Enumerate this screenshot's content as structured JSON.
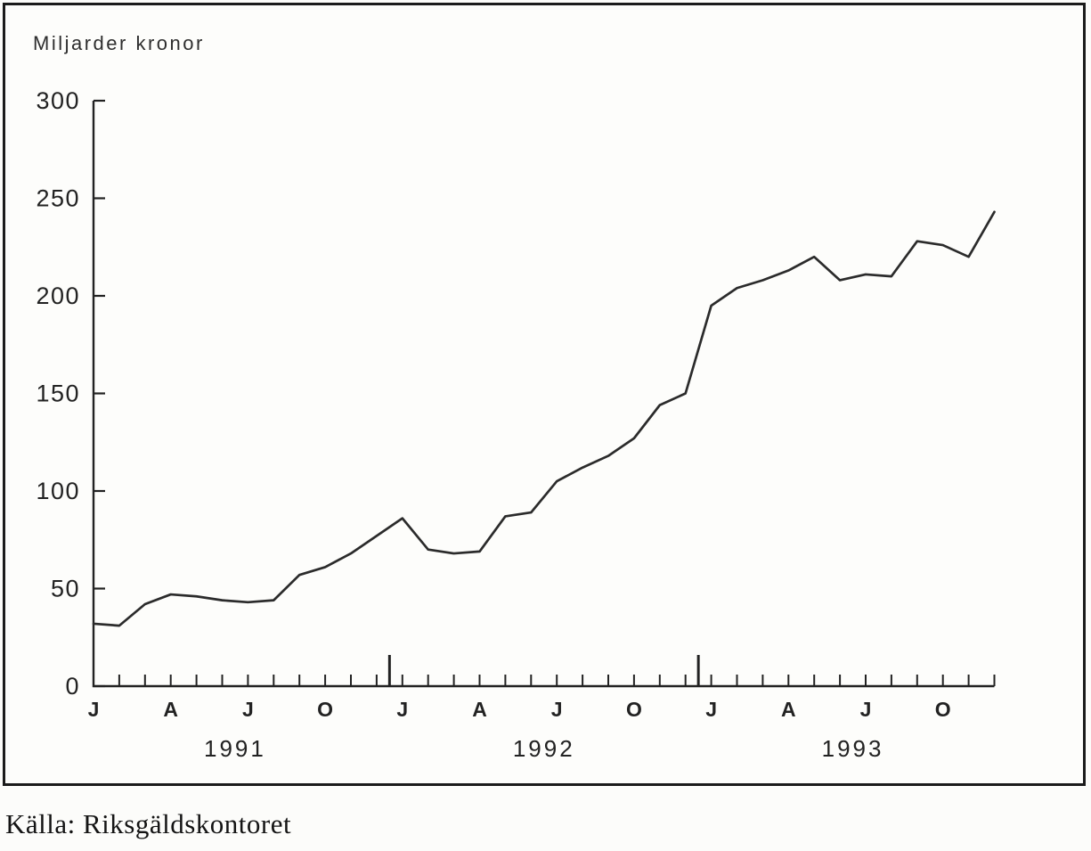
{
  "page": {
    "title": "Miljarder kronor",
    "source": "Källa: Riksgäldskontoret"
  },
  "chart_data": {
    "type": "line",
    "title": "Miljarder kronor",
    "ylabel": "Miljarder kronor",
    "xlabel": "",
    "ylim": [
      0,
      300
    ],
    "yticks": [
      0,
      50,
      100,
      150,
      200,
      250,
      300
    ],
    "x_unit": "month",
    "x_start": "1991-01",
    "x_end": "1993-12",
    "years": [
      "1991",
      "1992",
      "1993"
    ],
    "month_tick_labels": [
      "J",
      "A",
      "J",
      "O"
    ],
    "month_tick_offsets": [
      0,
      3,
      6,
      9
    ],
    "months_per_year": 12,
    "series": [
      {
        "name": "Miljarder kronor",
        "values": [
          32,
          31,
          42,
          47,
          46,
          44,
          43,
          44,
          57,
          61,
          68,
          77,
          86,
          70,
          68,
          69,
          87,
          89,
          105,
          112,
          118,
          127,
          144,
          150,
          195,
          204,
          208,
          213,
          220,
          208,
          211,
          210,
          228,
          226,
          220,
          243
        ]
      }
    ],
    "grid": false,
    "legend": false,
    "line_color": "#2b2b2b",
    "axis_color": "#222222",
    "background": "#fdfdfb",
    "source": "Källa: Riksgäldskontoret"
  }
}
